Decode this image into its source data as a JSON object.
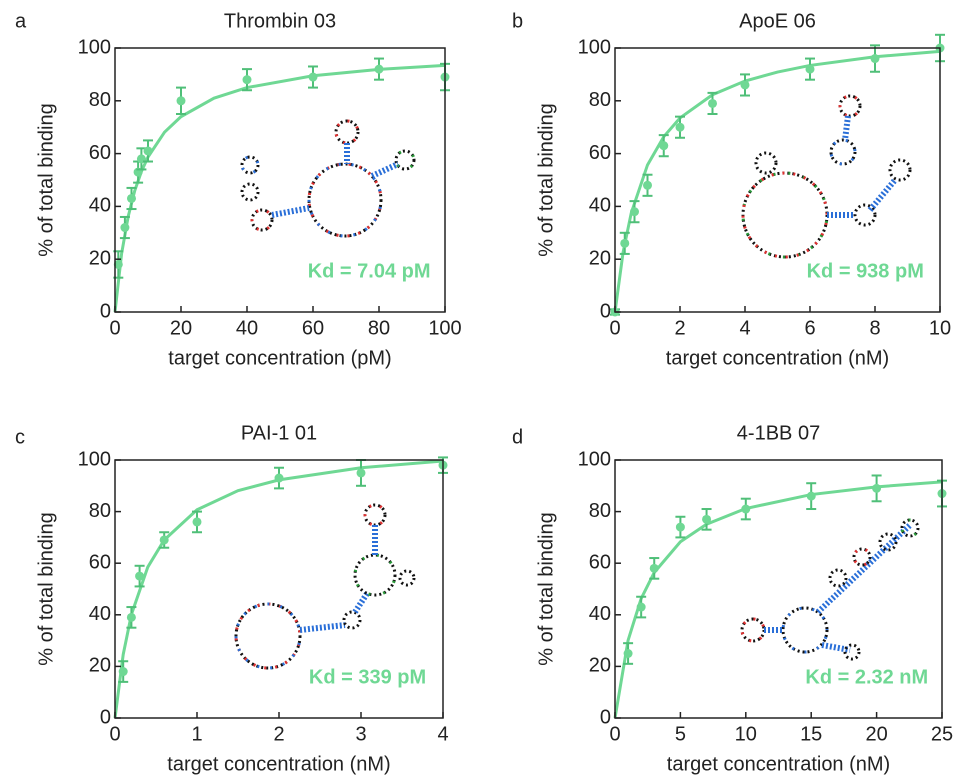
{
  "chart_data": [
    {
      "type": "scatter",
      "letter": "a",
      "title": "Thrombin 03",
      "xlabel": "target concentration (pM)",
      "ylabel": "% of total binding",
      "annotation": "Kd = 7.04 pM",
      "color": "#6fd894",
      "x": [
        1,
        3,
        5,
        7,
        8,
        10,
        20,
        40,
        60,
        80,
        100
      ],
      "values": [
        18,
        32,
        43,
        53,
        58,
        61,
        80,
        88,
        89,
        92,
        89
      ],
      "errors": [
        5,
        4,
        4,
        4,
        4,
        4,
        5,
        4,
        4,
        4,
        5
      ],
      "fit_x": [
        0,
        2,
        4,
        6,
        8,
        10,
        15,
        20,
        30,
        40,
        60,
        80,
        100
      ],
      "fit_values": [
        0,
        22.1,
        36.2,
        46,
        53.2,
        58.7,
        68.1,
        74,
        81,
        85,
        89.5,
        91.9,
        93.4
      ],
      "xlim": [
        0,
        100
      ],
      "ylim": [
        0,
        100
      ],
      "xticks": [
        0,
        20,
        40,
        60,
        80,
        100
      ],
      "yticks": [
        0,
        20,
        40,
        60,
        80,
        100
      ]
    },
    {
      "type": "scatter",
      "letter": "b",
      "title": "ApoE 06",
      "xlabel": "target concentration (nM)",
      "ylabel": "% of total binding",
      "annotation": "Kd = 938 pM",
      "color": "#6fd894",
      "x": [
        0,
        0.3,
        0.6,
        1,
        1.5,
        2,
        3,
        4,
        6,
        8,
        10
      ],
      "values": [
        0,
        26,
        38,
        48,
        63,
        70,
        79,
        86,
        92,
        96,
        100
      ],
      "errors": [
        1,
        4,
        4,
        4,
        4,
        4,
        4,
        4,
        4,
        5,
        5
      ],
      "fit_x": [
        0,
        0.25,
        0.5,
        1,
        1.5,
        2,
        3,
        4,
        5,
        6,
        8,
        10
      ],
      "fit_values": [
        0,
        22.7,
        37.5,
        55.7,
        66.4,
        73.5,
        82.3,
        87.5,
        90.9,
        93.4,
        96.7,
        98.7
      ],
      "xlim": [
        0,
        10
      ],
      "ylim": [
        0,
        100
      ],
      "xticks": [
        0,
        2,
        4,
        6,
        8,
        10
      ],
      "yticks": [
        0,
        20,
        40,
        60,
        80,
        100
      ]
    },
    {
      "type": "scatter",
      "letter": "c",
      "title": "PAI-1 01",
      "xlabel": "target concentration (nM)",
      "ylabel": "% of total binding",
      "annotation": "Kd = 339 pM",
      "color": "#6fd894",
      "x": [
        0.1,
        0.2,
        0.3,
        0.6,
        1,
        2,
        3,
        4
      ],
      "values": [
        18,
        39,
        55,
        69,
        76,
        93,
        95,
        98
      ],
      "errors": [
        4,
        4,
        4,
        3,
        4,
        4,
        5,
        3
      ],
      "fit_x": [
        0,
        0.1,
        0.2,
        0.4,
        0.6,
        1,
        1.5,
        2,
        3,
        4
      ],
      "fit_values": [
        0,
        24.6,
        40.1,
        58.5,
        69,
        80.7,
        88.1,
        92.3,
        97,
        99.6
      ],
      "xlim": [
        0,
        4
      ],
      "ylim": [
        0,
        100
      ],
      "xticks": [
        0,
        1,
        2,
        3,
        4
      ],
      "yticks": [
        0,
        20,
        40,
        60,
        80,
        100
      ]
    },
    {
      "type": "scatter",
      "letter": "d",
      "title": "4-1BB 07",
      "xlabel": "target concentration (nM)",
      "ylabel": "% of total binding",
      "annotation": "Kd = 2.32 nM",
      "color": "#6fd894",
      "x": [
        1,
        2,
        3,
        5,
        7,
        10,
        15,
        20,
        25
      ],
      "values": [
        25,
        43,
        58,
        74,
        77,
        81,
        86,
        89,
        87
      ],
      "errors": [
        4,
        4,
        4,
        4,
        4,
        4,
        5,
        5,
        5
      ],
      "fit_x": [
        0,
        1,
        2,
        3,
        5,
        7,
        10,
        15,
        20,
        25
      ],
      "fit_values": [
        0,
        30.1,
        46.3,
        56.4,
        68.3,
        75.1,
        81.2,
        86.6,
        89.6,
        91.5
      ],
      "xlim": [
        0,
        25
      ],
      "ylim": [
        0,
        100
      ],
      "xticks": [
        0,
        5,
        10,
        15,
        20,
        25
      ],
      "yticks": [
        0,
        20,
        40,
        60,
        80,
        100
      ]
    }
  ]
}
